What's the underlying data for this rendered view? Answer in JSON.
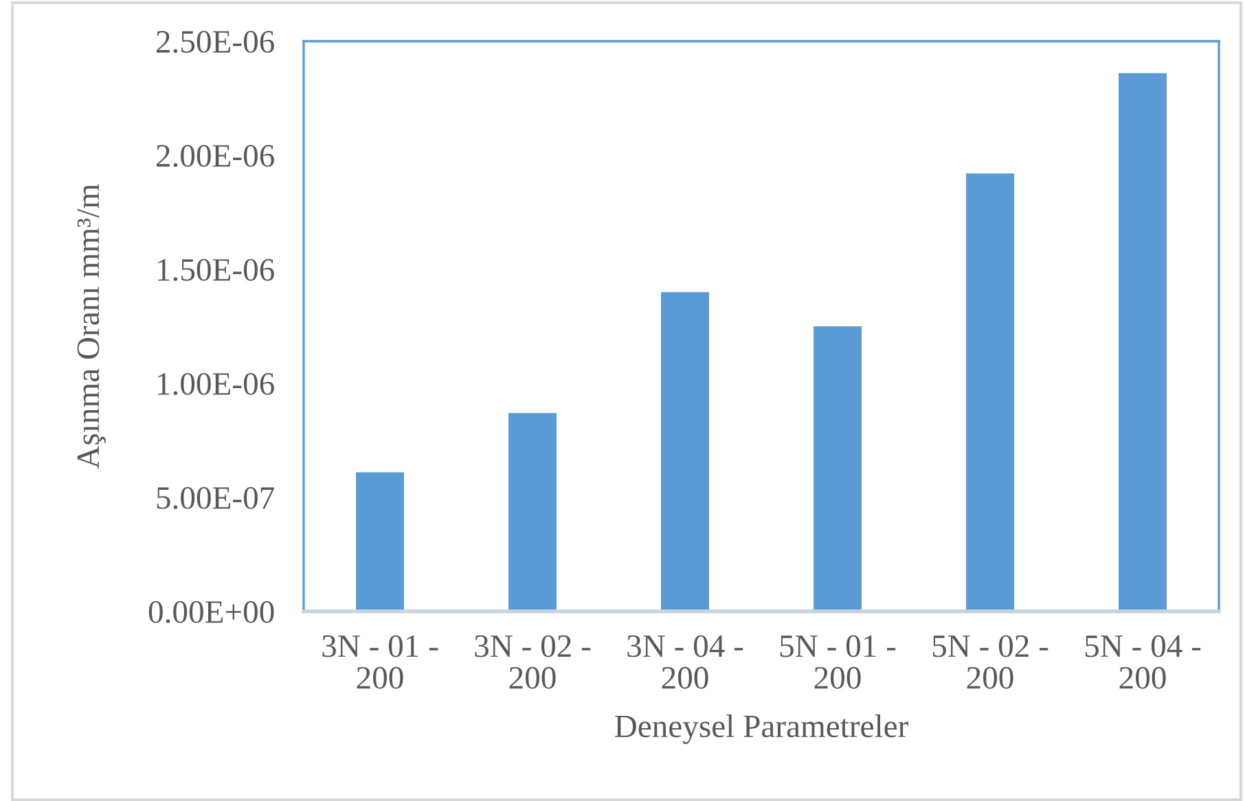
{
  "chart_data": {
    "type": "bar",
    "xlabel": "Deneysel Parametreler",
    "ylabel": "Aşınma Oranı mm³/m",
    "categories": [
      "3N - 01 -\n200",
      "3N - 02 -\n200",
      "3N - 04 -\n200",
      "5N - 01 -\n200",
      "5N - 02 -\n200",
      "5N - 04 -\n200"
    ],
    "values": [
      6.1e-07,
      8.7e-07,
      1.4e-06,
      1.25e-06,
      1.92e-06,
      2.36e-06
    ],
    "color": "#5b9bd5",
    "ylim": [
      0,
      2.5e-06
    ],
    "yticks": [
      {
        "value": 0,
        "label": "0.00E+00"
      },
      {
        "value": 5e-07,
        "label": "5.00E-07"
      },
      {
        "value": 1e-06,
        "label": "1.00E-06"
      },
      {
        "value": 1.5e-06,
        "label": "1.50E-06"
      },
      {
        "value": 2e-06,
        "label": "2.00E-06"
      },
      {
        "value": 2.5e-06,
        "label": "2.50E-06"
      }
    ]
  }
}
